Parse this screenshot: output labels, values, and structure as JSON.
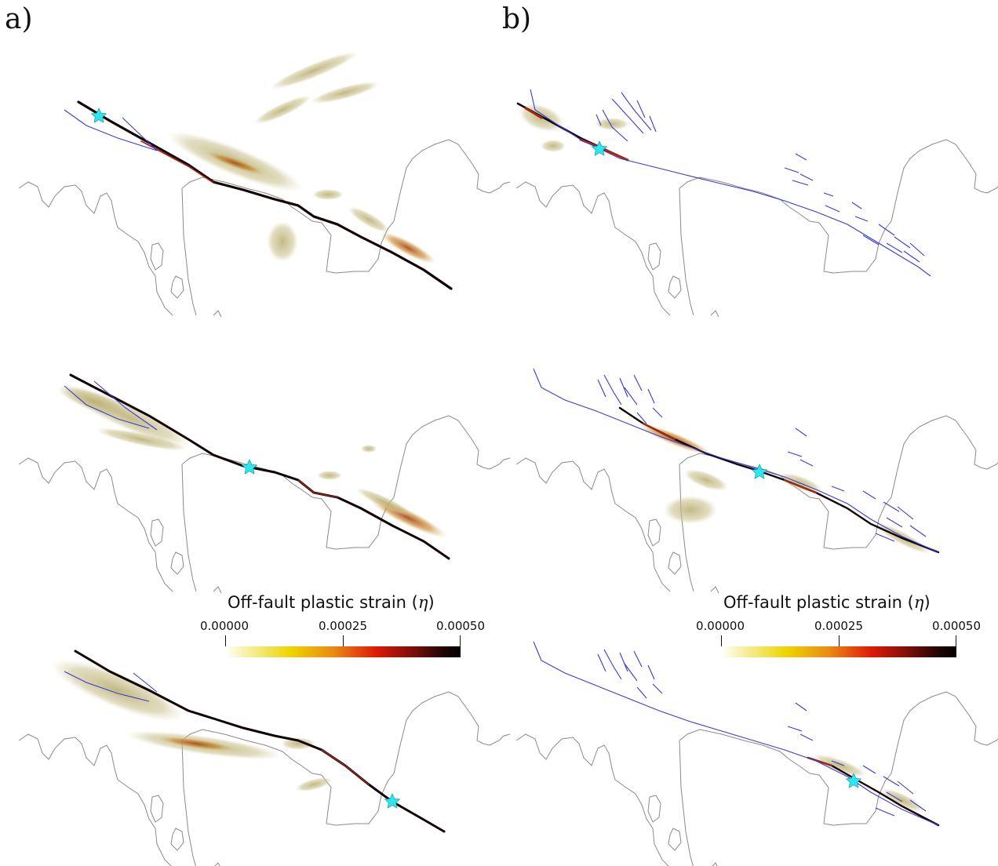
{
  "panels": {
    "a": {
      "label": "a)"
    },
    "b": {
      "label": "b)"
    }
  },
  "colorbar": {
    "title": "Off-fault plastic strain (",
    "symbol": "η",
    "title_end": ")",
    "ticks": [
      "0.00000",
      "0.00025",
      "0.00050"
    ],
    "range": [
      0,
      0.0005
    ],
    "colormap": [
      "#ffffff",
      "#f0e020",
      "#e87a10",
      "#e01a0a",
      "#000000"
    ]
  },
  "colors": {
    "coastline": "#8a8a8a",
    "fault_traces": "#3a3ad8",
    "hypocenter": "#2ee6f0",
    "background": "#ffffff"
  }
}
